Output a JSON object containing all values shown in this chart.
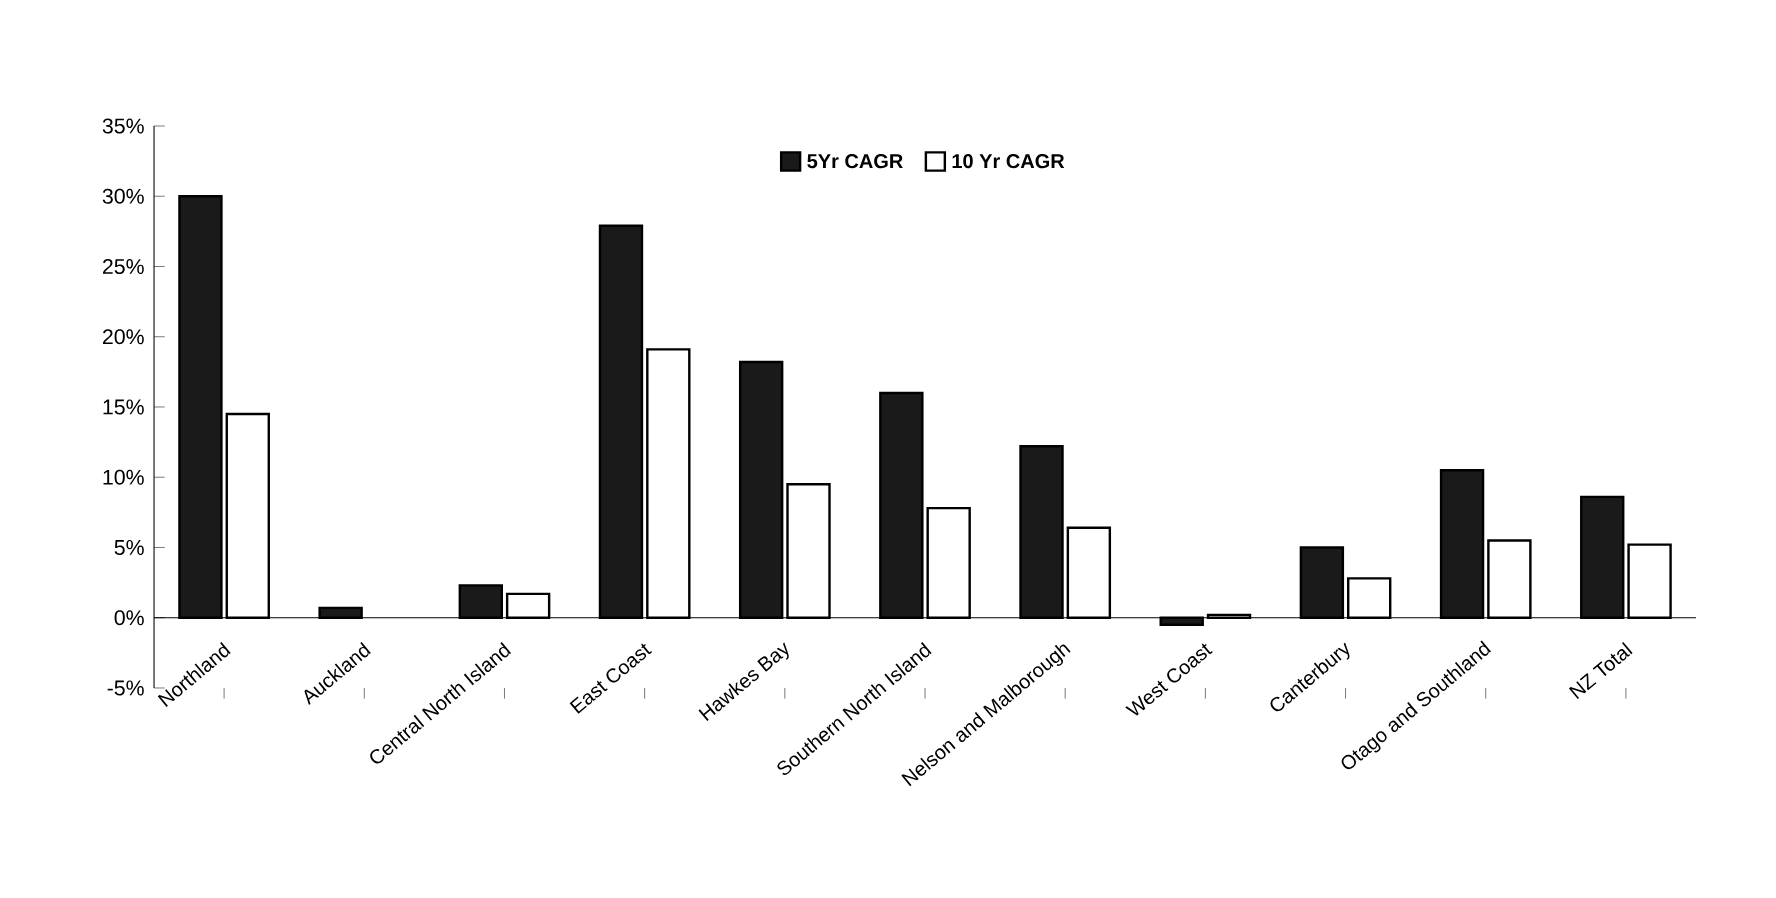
{
  "chart_data": {
    "type": "bar",
    "categories": [
      "Northland",
      "Auckland",
      "Central North Island",
      "East Coast",
      "Hawkes Bay",
      "Southern North Island",
      "Nelson and Malborough",
      "West Coast",
      "Canterbury",
      "Otago and Southland",
      "NZ Total"
    ],
    "series": [
      {
        "name": "5Yr CAGR",
        "color": "#1a1a1a",
        "values": [
          30.0,
          0.7,
          2.3,
          27.9,
          18.2,
          16.0,
          12.2,
          -0.5,
          5.0,
          10.5,
          8.6
        ]
      },
      {
        "name": "10 Yr CAGR",
        "color": "#ffffff",
        "values": [
          14.5,
          null,
          1.7,
          19.1,
          9.5,
          7.8,
          6.4,
          0.2,
          2.8,
          5.5,
          5.2
        ]
      }
    ],
    "ylim": [
      -5,
      35
    ],
    "yticks": [
      {
        "value": -5,
        "label": "-5%"
      },
      {
        "value": 0,
        "label": "0%"
      },
      {
        "value": 5,
        "label": "5%"
      },
      {
        "value": 10,
        "label": "10%"
      },
      {
        "value": 15,
        "label": "15%"
      },
      {
        "value": 20,
        "label": "20%"
      },
      {
        "value": 25,
        "label": "25%"
      },
      {
        "value": 30,
        "label": "30%"
      },
      {
        "value": 35,
        "label": "35%"
      }
    ],
    "legend": "top",
    "grid": false
  }
}
